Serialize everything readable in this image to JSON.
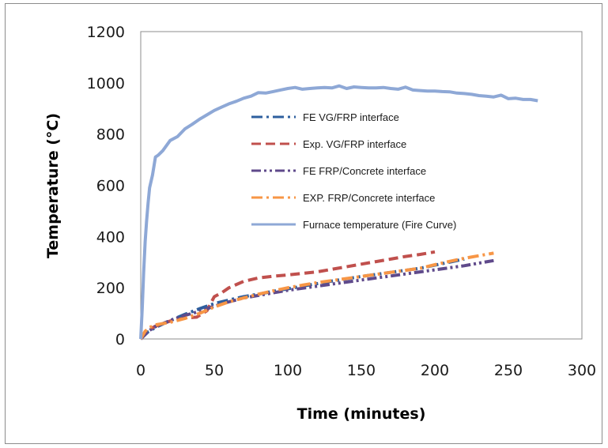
{
  "chart_data": {
    "type": "line",
    "title": "",
    "xlabel": "Time (minutes)",
    "ylabel": "Temperature (°C)",
    "xlim": [
      0,
      300
    ],
    "ylim": [
      0,
      1200
    ],
    "xticks": [
      "0",
      "50",
      "100",
      "150",
      "200",
      "250",
      "300"
    ],
    "yticks": [
      "0",
      "200",
      "400",
      "600",
      "800",
      "1000",
      "1200"
    ],
    "grid": false,
    "legend_position": "center-right",
    "series": [
      {
        "name": "FE VG/FRP interface",
        "color": "#2e5f9e",
        "dash": "dashdot",
        "x": [
          0,
          5,
          10,
          20,
          30,
          40,
          50,
          60,
          70,
          80,
          90,
          100,
          110,
          120,
          130,
          140,
          150,
          160,
          170,
          180,
          190,
          200,
          210,
          220
        ],
        "y": [
          0,
          28,
          45,
          72,
          96,
          118,
          138,
          152,
          165,
          175,
          186,
          196,
          206,
          216,
          226,
          235,
          244,
          252,
          260,
          268,
          276,
          288,
          300,
          312
        ]
      },
      {
        "name": "Exp. VG/FRP interface",
        "color": "#c0504d",
        "dash": "dash",
        "x": [
          0,
          5,
          10,
          20,
          30,
          38,
          45,
          50,
          55,
          60,
          70,
          80,
          90,
          100,
          110,
          120,
          130,
          140,
          150,
          160,
          170,
          180,
          190,
          200
        ],
        "y": [
          0,
          35,
          50,
          70,
          82,
          85,
          110,
          165,
          180,
          200,
          225,
          238,
          245,
          250,
          256,
          262,
          272,
          282,
          292,
          302,
          312,
          322,
          330,
          340
        ]
      },
      {
        "name": "FE FRP/Concrete interface",
        "color": "#5f4a8b",
        "dash": "dashdotdot",
        "x": [
          0,
          5,
          10,
          20,
          30,
          40,
          50,
          60,
          70,
          80,
          90,
          100,
          110,
          120,
          130,
          140,
          150,
          160,
          170,
          180,
          190,
          200,
          210,
          220,
          230,
          240
        ],
        "y": [
          0,
          30,
          48,
          72,
          92,
          108,
          128,
          145,
          160,
          170,
          180,
          190,
          198,
          206,
          214,
          222,
          230,
          238,
          246,
          254,
          262,
          270,
          278,
          286,
          296,
          306
        ]
      },
      {
        "name": "EXP. FRP/Concrete interface",
        "color": "#f79646",
        "dash": "dashdot",
        "x": [
          0,
          3,
          6,
          10,
          20,
          30,
          40,
          50,
          60,
          70,
          80,
          90,
          100,
          110,
          120,
          130,
          140,
          150,
          160,
          170,
          180,
          190,
          200,
          210,
          220,
          230,
          240
        ],
        "y": [
          0,
          30,
          45,
          55,
          65,
          80,
          100,
          125,
          145,
          160,
          175,
          188,
          200,
          210,
          220,
          228,
          236,
          244,
          252,
          260,
          268,
          276,
          290,
          303,
          315,
          325,
          335
        ]
      },
      {
        "name": "Furnace temperature (Fire Curve)",
        "color": "#8ea8d6",
        "dash": "solid",
        "x": [
          0,
          1,
          2,
          3,
          4,
          5,
          6,
          8,
          10,
          12,
          15,
          20,
          25,
          30,
          35,
          40,
          45,
          50,
          55,
          60,
          65,
          70,
          75,
          80,
          85,
          90,
          95,
          100,
          105,
          110,
          115,
          120,
          125,
          130,
          135,
          140,
          145,
          150,
          155,
          160,
          165,
          170,
          175,
          180,
          185,
          190,
          195,
          200,
          205,
          210,
          215,
          220,
          225,
          230,
          235,
          240,
          245,
          250,
          255,
          260,
          265,
          270
        ],
        "y": [
          0,
          120,
          260,
          380,
          460,
          530,
          590,
          640,
          710,
          718,
          735,
          775,
          790,
          820,
          838,
          858,
          875,
          892,
          905,
          918,
          928,
          940,
          948,
          962,
          960,
          966,
          972,
          978,
          982,
          975,
          978,
          980,
          982,
          980,
          988,
          978,
          984,
          982,
          980,
          980,
          982,
          978,
          975,
          983,
          972,
          970,
          968,
          968,
          966,
          965,
          960,
          958,
          955,
          950,
          948,
          945,
          952,
          938,
          940,
          935,
          935,
          930
        ]
      }
    ]
  }
}
